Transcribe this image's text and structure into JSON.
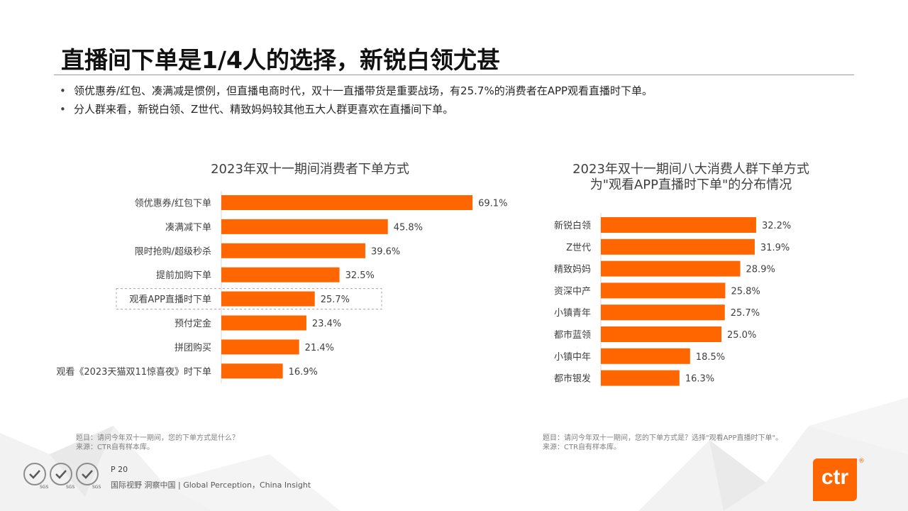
{
  "title": "直播间下单是1/4人的选择，新锐白领尤甚",
  "bullets": [
    "领优惠券/红包、凑满减是惯例，但直播电商时代，双十一直播带货是重要战场，有25.7%的消费者在APP观看直播时下单。",
    "分人群来看，新锐白领、Z世代、精致妈妈较其他五大人群更喜欢在直播间下单。"
  ],
  "chart_data": [
    {
      "type": "bar",
      "orientation": "horizontal",
      "title": "2023年双十一期间消费者下单方式",
      "categories": [
        "领优惠券/红包下单",
        "凑满减下单",
        "限时抢购/超级秒杀",
        "提前加购下单",
        "观看APP直播时下单",
        "预付定金",
        "拼团购买",
        "观看《2023天猫双11惊喜夜》时下单"
      ],
      "values": [
        69.1,
        45.8,
        39.6,
        32.5,
        25.7,
        23.4,
        21.4,
        16.9
      ],
      "value_labels": [
        "69.1%",
        "45.8%",
        "39.6%",
        "32.5%",
        "25.7%",
        "23.4%",
        "21.4%",
        "16.9%"
      ],
      "highlight_category": "观看APP直播时下单",
      "xlim": [
        0,
        80
      ],
      "color": "#ff6600"
    },
    {
      "type": "bar",
      "orientation": "horizontal",
      "title_lines": [
        "2023年双十一期间八大消费人群下单方式",
        "为\"观看APP直播时下单\"的分布情况"
      ],
      "categories": [
        "新锐白领",
        "Z世代",
        "精致妈妈",
        "资深中产",
        "小镇青年",
        "都市蓝领",
        "小镇中年",
        "都市银发"
      ],
      "values": [
        32.2,
        31.9,
        28.9,
        25.8,
        25.7,
        25.0,
        18.5,
        16.3
      ],
      "value_labels": [
        "32.2%",
        "31.9%",
        "28.9%",
        "25.8%",
        "25.7%",
        "25.0%",
        "18.5%",
        "16.3%"
      ],
      "xlim": [
        0,
        40
      ],
      "color": "#ff6600"
    }
  ],
  "notes": {
    "left": [
      "题目：请问今年双十一期间，您的下单方式是什么？",
      "来源：CTR自有样本库。"
    ],
    "right": [
      "题目：请问今年双十一期间，您的下单方式是？选择\"观看APP直播时下单\"。",
      "来源：CTR自有样本库。"
    ]
  },
  "footer": {
    "page": "P 20",
    "slogan": "国际视野  洞察中国 |  Global Perception，China Insight",
    "badge": "SGS",
    "logo": "ctr",
    "logo_mark": "®"
  },
  "colors": {
    "accent": "#ff6600",
    "text": "#404040",
    "title": "#111111"
  }
}
